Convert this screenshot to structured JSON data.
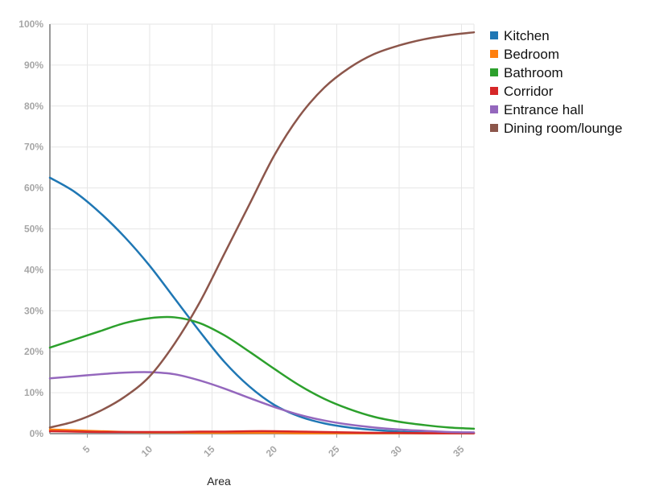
{
  "chart_data": {
    "type": "line",
    "title": "",
    "xlabel": "Area",
    "ylabel": "",
    "xlim": [
      2,
      36
    ],
    "ylim": [
      0,
      100
    ],
    "x_ticks": [
      5,
      10,
      15,
      20,
      25,
      30,
      35
    ],
    "y_ticks": [
      0,
      10,
      20,
      30,
      40,
      50,
      60,
      70,
      80,
      90,
      100
    ],
    "y_tick_labels": [
      "0%",
      "10%",
      "20%",
      "30%",
      "40%",
      "50%",
      "60%",
      "70%",
      "80%",
      "90%",
      "100%"
    ],
    "grid": true,
    "legend_position": "right",
    "x": [
      2,
      4,
      6,
      8,
      10,
      12,
      14,
      16,
      18,
      20,
      22,
      24,
      26,
      28,
      30,
      32,
      34,
      36
    ],
    "series": [
      {
        "name": "Kitchen",
        "color": "#1f77b4",
        "values": [
          62.5,
          59.0,
          54.0,
          48.0,
          41.0,
          33.0,
          25.0,
          17.5,
          11.5,
          7.0,
          4.2,
          2.5,
          1.5,
          0.9,
          0.5,
          0.3,
          0.2,
          0.1
        ]
      },
      {
        "name": "Bedroom",
        "color": "#ff7f0e",
        "values": [
          1.0,
          0.8,
          0.6,
          0.4,
          0.3,
          0.3,
          0.2,
          0.2,
          0.2,
          0.2,
          0.1,
          0.1,
          0.1,
          0.1,
          0.1,
          0.1,
          0.1,
          0.1
        ]
      },
      {
        "name": "Bathroom",
        "color": "#2ca02c",
        "values": [
          21.0,
          23.0,
          25.0,
          27.0,
          28.2,
          28.4,
          27.0,
          24.0,
          20.0,
          15.8,
          11.8,
          8.5,
          6.0,
          4.1,
          2.9,
          2.1,
          1.5,
          1.2
        ]
      },
      {
        "name": "Corridor",
        "color": "#d62728",
        "values": [
          0.6,
          0.5,
          0.4,
          0.4,
          0.4,
          0.4,
          0.5,
          0.5,
          0.6,
          0.6,
          0.5,
          0.4,
          0.3,
          0.2,
          0.2,
          0.1,
          0.1,
          0.1
        ]
      },
      {
        "name": "Entrance hall",
        "color": "#9467bd",
        "values": [
          13.5,
          14.0,
          14.5,
          14.9,
          15.0,
          14.5,
          13.0,
          11.0,
          8.7,
          6.5,
          4.6,
          3.2,
          2.2,
          1.5,
          1.0,
          0.7,
          0.4,
          0.3
        ]
      },
      {
        "name": "Dining room/lounge",
        "color": "#8c564b",
        "values": [
          1.5,
          3.0,
          5.5,
          9.0,
          14.0,
          22.0,
          32.0,
          44.0,
          56.0,
          68.0,
          77.5,
          84.5,
          89.3,
          92.7,
          94.8,
          96.3,
          97.3,
          98.0
        ]
      }
    ]
  }
}
